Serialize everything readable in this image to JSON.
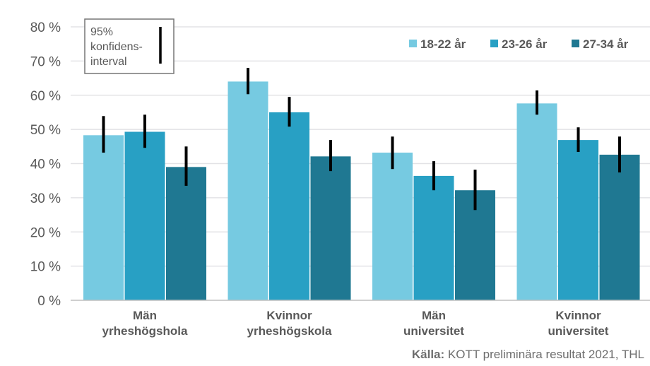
{
  "chart_data": {
    "type": "bar",
    "categories": [
      [
        "Män",
        "yrheshögshola"
      ],
      [
        "Kvinnor",
        "yrheshögskola"
      ],
      [
        "Män",
        "universitet"
      ],
      [
        "Kvinnor",
        "universitet"
      ]
    ],
    "series": [
      {
        "name": "18-22 år",
        "color": "#76CAE1",
        "values": [
          48.3,
          64.0,
          43.2,
          57.6
        ],
        "ci_low": [
          43.2,
          60.3,
          38.4,
          54.3
        ],
        "ci_high": [
          53.9,
          68.0,
          47.9,
          61.4
        ]
      },
      {
        "name": "23-26 år",
        "color": "#28A0C4",
        "values": [
          49.3,
          55.0,
          36.4,
          46.9
        ],
        "ci_low": [
          44.6,
          50.8,
          32.2,
          43.4
        ],
        "ci_high": [
          54.3,
          59.5,
          40.7,
          50.6
        ]
      },
      {
        "name": "27-34 år",
        "color": "#1F7892",
        "values": [
          39.0,
          42.1,
          32.2,
          42.6
        ],
        "ci_low": [
          33.5,
          37.8,
          26.4,
          37.4
        ],
        "ci_high": [
          45.0,
          46.9,
          38.2,
          47.9
        ]
      }
    ],
    "ylim": [
      0,
      80
    ],
    "yticks": [
      0,
      10,
      20,
      30,
      40,
      50,
      60,
      70,
      80
    ],
    "ytick_suffix": " %",
    "grid": true,
    "legend_placement": "top-right",
    "ci_legend": [
      "95%",
      "konfidens-",
      "interval"
    ]
  },
  "source": {
    "label": "Källa:",
    "text": " KOTT preliminära resultat 2021, THL"
  }
}
